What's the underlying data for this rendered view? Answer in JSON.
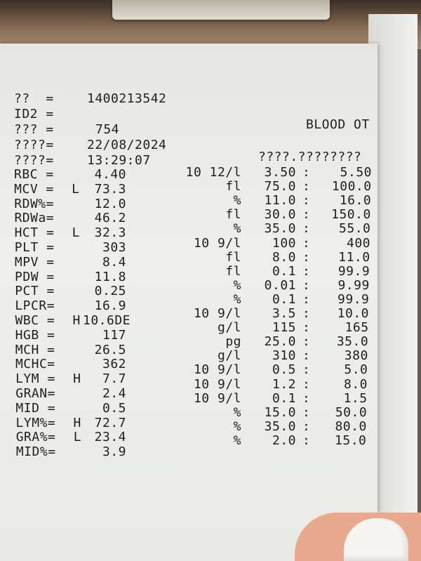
{
  "header": {
    "fields": [
      {
        "label": "??  =",
        "value": "1400213542"
      },
      {
        "label": "ID2 =",
        "value": ""
      },
      {
        "label": "??? =",
        "value": "754"
      },
      {
        "label": "????=",
        "value": "22/08/2024"
      },
      {
        "label": "????=",
        "value": "13:29:07"
      }
    ],
    "title": "BLOOD OT",
    "range_header": "????.????????"
  },
  "results": [
    {
      "name": "RBC =",
      "flag": "",
      "value": "4.40",
      "unit": "10 12/l",
      "low": "3.50",
      "high": "5.50"
    },
    {
      "name": "MCV =",
      "flag": "L",
      "value": "73.3",
      "unit": "fl",
      "low": "75.0",
      "high": "100.0"
    },
    {
      "name": "RDW%=",
      "flag": "",
      "value": "12.0",
      "unit": "%",
      "low": "11.0",
      "high": "16.0"
    },
    {
      "name": "RDWa=",
      "flag": "",
      "value": "46.2",
      "unit": "fl",
      "low": "30.0",
      "high": "150.0"
    },
    {
      "name": "HCT =",
      "flag": "L",
      "value": "32.3",
      "unit": "%",
      "low": "35.0",
      "high": "55.0"
    },
    {
      "name": "PLT =",
      "flag": "",
      "value": "303",
      "unit": "10 9/l",
      "low": "100",
      "high": "400"
    },
    {
      "name": "MPV =",
      "flag": "",
      "value": "8.4",
      "unit": "fl",
      "low": "8.0",
      "high": "11.0"
    },
    {
      "name": "PDW =",
      "flag": "",
      "value": "11.8",
      "unit": "fl",
      "low": "0.1",
      "high": "99.9"
    },
    {
      "name": "PCT =",
      "flag": "",
      "value": "0.25",
      "unit": "%",
      "low": "0.01",
      "high": "9.99"
    },
    {
      "name": "LPCR=",
      "flag": "",
      "value": "16.9",
      "unit": "%",
      "low": "0.1",
      "high": "99.9"
    },
    {
      "name": "WBC =",
      "flag": "H",
      "value": "10.6DE",
      "unit": "10 9/l",
      "low": "3.5",
      "high": "10.0"
    },
    {
      "name": "HGB =",
      "flag": "",
      "value": "117",
      "unit": "g/l",
      "low": "115",
      "high": "165"
    },
    {
      "name": "MCH =",
      "flag": "",
      "value": "26.5",
      "unit": "pg",
      "low": "25.0",
      "high": "35.0"
    },
    {
      "name": "MCHC=",
      "flag": "",
      "value": "362",
      "unit": "g/l",
      "low": "310",
      "high": "380"
    },
    {
      "name": "LYM =",
      "flag": "H",
      "value": "7.7",
      "unit": "10 9/l",
      "low": "0.5",
      "high": "5.0"
    },
    {
      "name": "GRAN=",
      "flag": "",
      "value": "2.4",
      "unit": "10 9/l",
      "low": "1.2",
      "high": "8.0"
    },
    {
      "name": "MID =",
      "flag": "",
      "value": "0.5",
      "unit": "10 9/l",
      "low": "0.1",
      "high": "1.5"
    },
    {
      "name": "LYM%=",
      "flag": "H",
      "value": "72.7",
      "unit": "%",
      "low": "15.0",
      "high": "50.0"
    },
    {
      "name": "GRA%=",
      "flag": "L",
      "value": "23.4",
      "unit": "%",
      "low": "35.0",
      "high": "80.0"
    },
    {
      "name": "MID%=",
      "flag": "",
      "value": "3.9",
      "unit": "%",
      "low": "2.0",
      "high": "15.0"
    }
  ],
  "separator": ":"
}
